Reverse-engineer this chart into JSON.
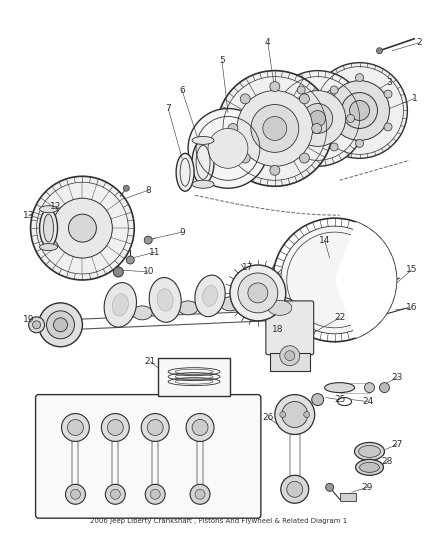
{
  "title": "2006 Jeep Liberty Crankshaft , Pistons And Flywheel & Related Diagram 1",
  "background_color": "#ffffff",
  "line_color": "#303030",
  "label_color": "#1a1a1a",
  "figsize": [
    4.38,
    5.33
  ],
  "dpi": 100
}
